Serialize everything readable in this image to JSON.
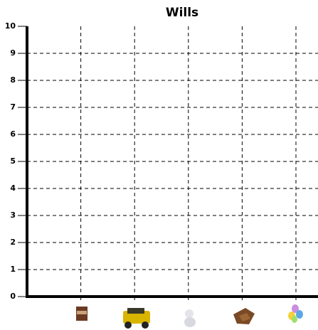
{
  "chart_data": {
    "type": "bar",
    "title": "Wills",
    "categories": [
      null,
      null,
      null,
      null,
      null
    ],
    "values": [
      null,
      null,
      null,
      null,
      null
    ],
    "color": "#4472c4",
    "ylim": [
      0,
      10
    ],
    "yticks": [
      0,
      1,
      2,
      3,
      4,
      5,
      6,
      7,
      8,
      9,
      10
    ],
    "grid": true
  }
}
